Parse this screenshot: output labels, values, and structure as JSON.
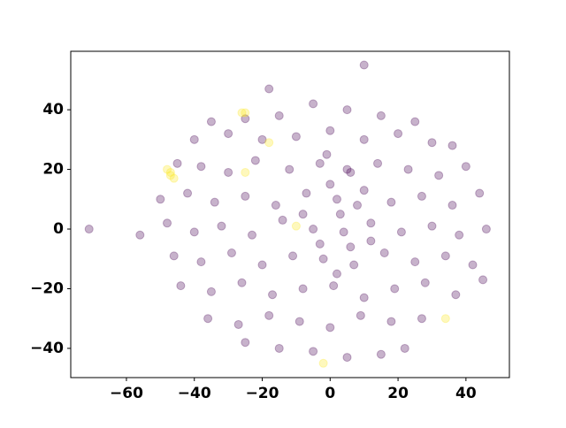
{
  "chart_data": {
    "type": "scatter",
    "xlim": [
      -76.4,
      52.8
    ],
    "ylim": [
      -49.8,
      59.6
    ],
    "xticks": [
      {
        "value": -60,
        "label": "−60"
      },
      {
        "value": -40,
        "label": "−40"
      },
      {
        "value": -20,
        "label": "−20"
      },
      0,
      20,
      40
    ],
    "yticks": [
      {
        "value": -40,
        "label": "−40"
      },
      {
        "value": -20,
        "label": "−20"
      },
      0,
      20,
      40
    ],
    "grid": false,
    "series": [
      {
        "color": "#440154",
        "x": [
          -71,
          -56,
          10,
          -18,
          -35,
          -25,
          -15,
          -5,
          5,
          15,
          25,
          -40,
          -30,
          -20,
          -10,
          0,
          10,
          20,
          30,
          36,
          -45,
          -38,
          -30,
          -22,
          -12,
          -3,
          6,
          14,
          23,
          32,
          40,
          -50,
          -42,
          -34,
          -25,
          -16,
          -7,
          2,
          10,
          18,
          27,
          36,
          44,
          -48,
          -40,
          -32,
          -23,
          -14,
          -5,
          4,
          12,
          21,
          30,
          38,
          46,
          -46,
          -38,
          -29,
          -20,
          -11,
          -2,
          7,
          16,
          25,
          34,
          42,
          -44,
          -35,
          -26,
          -17,
          -8,
          1,
          10,
          19,
          28,
          37,
          45,
          -36,
          -27,
          -18,
          -9,
          0,
          9,
          18,
          27,
          -25,
          -15,
          -5,
          5,
          15,
          22,
          0,
          3,
          -3,
          6,
          8,
          -8,
          2,
          5,
          -1,
          12
        ],
        "y": [
          0,
          -2,
          55,
          47,
          36,
          37,
          38,
          42,
          40,
          38,
          36,
          30,
          32,
          30,
          31,
          33,
          30,
          32,
          29,
          28,
          22,
          21,
          19,
          23,
          20,
          22,
          19,
          22,
          20,
          18,
          21,
          10,
          12,
          9,
          11,
          8,
          12,
          10,
          13,
          9,
          11,
          8,
          12,
          2,
          -1,
          1,
          -2,
          3,
          0,
          -1,
          2,
          -1,
          1,
          -2,
          0,
          -9,
          -11,
          -8,
          -12,
          -9,
          -10,
          -12,
          -8,
          -11,
          -9,
          -12,
          -19,
          -21,
          -18,
          -22,
          -20,
          -19,
          -23,
          -20,
          -18,
          -22,
          -17,
          -30,
          -32,
          -29,
          -31,
          -33,
          -29,
          -31,
          -30,
          -38,
          -40,
          -41,
          -43,
          -42,
          -40,
          15,
          5,
          -5,
          -6,
          8,
          5,
          -15,
          20,
          25,
          -4
        ]
      },
      {
        "color": "#fde725",
        "x": [
          -48,
          -47,
          -47,
          -46,
          -26,
          -25,
          -18,
          -25,
          -10,
          34,
          -2
        ],
        "y": [
          20,
          19,
          18,
          17,
          39,
          39,
          29,
          19,
          1,
          -30,
          -45
        ]
      }
    ]
  }
}
